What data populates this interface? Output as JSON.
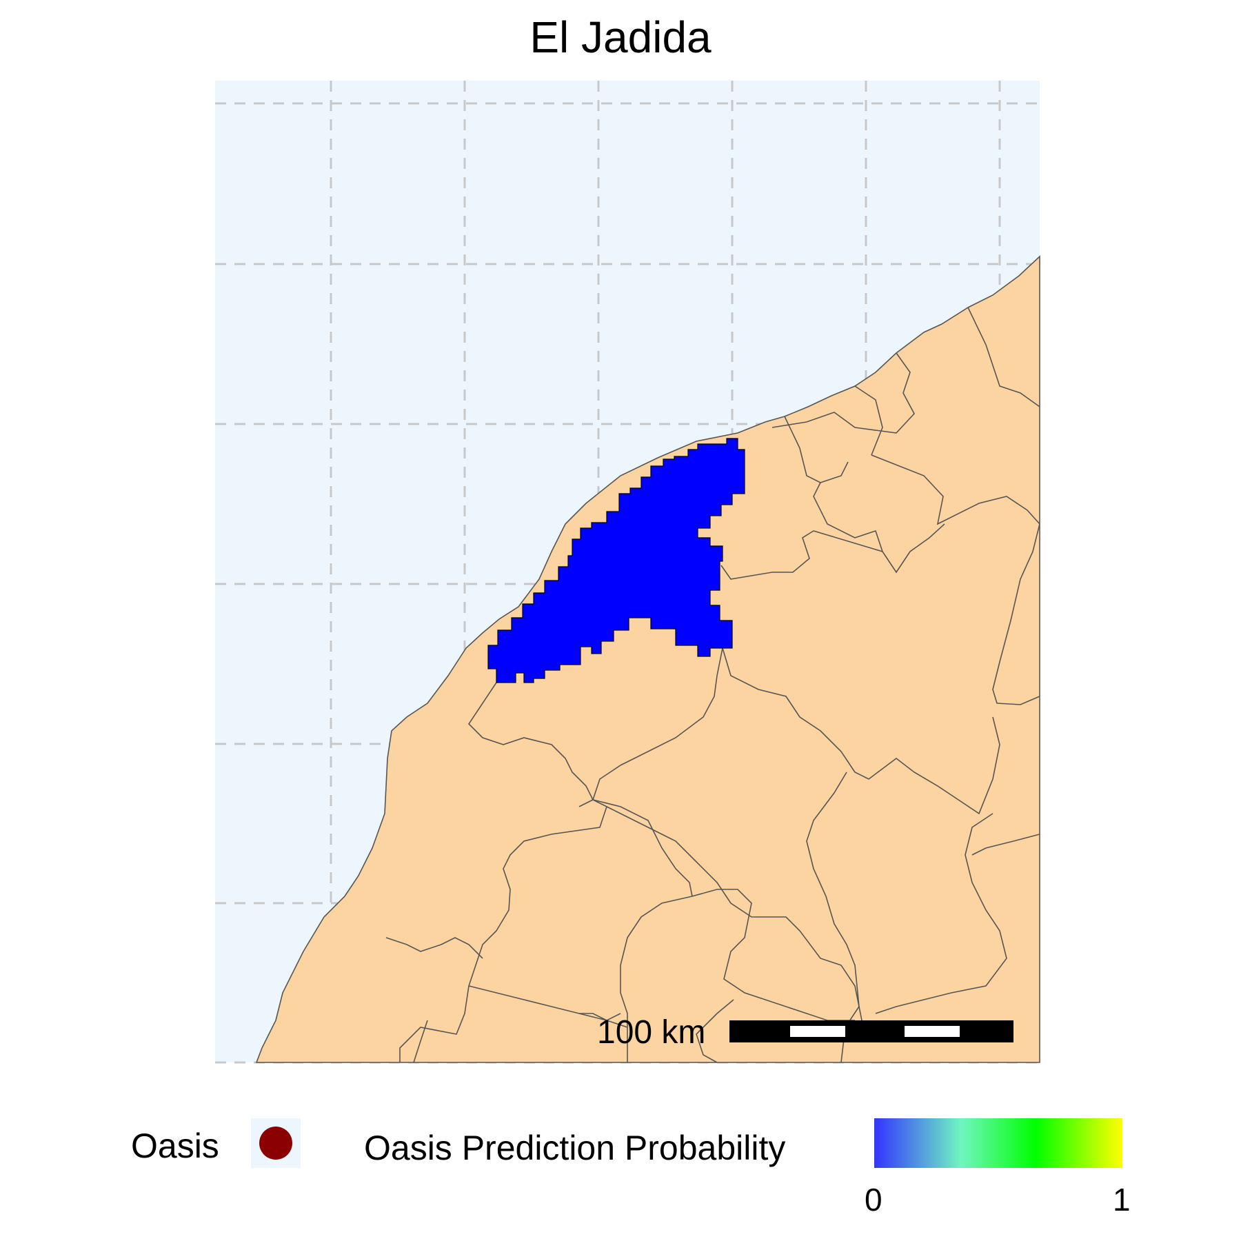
{
  "title": "El Jadida",
  "colors": {
    "sea": "#eef6fd",
    "land": "#fbd4a1",
    "border": "#555555",
    "grid": "#c8c8c8",
    "prediction": "#0000ff",
    "oasis_marker": "#8b0000",
    "colorbar_stops": [
      "#3333ff",
      "#70f5c0",
      "#00ff00",
      "#ffff00"
    ]
  },
  "scale_bar": {
    "label": "100 km"
  },
  "legend": {
    "oasis_label": "Oasis",
    "probability_label": "Oasis Prediction Probability",
    "tick_min": "0",
    "tick_max": "1"
  },
  "prediction_value": 0
}
